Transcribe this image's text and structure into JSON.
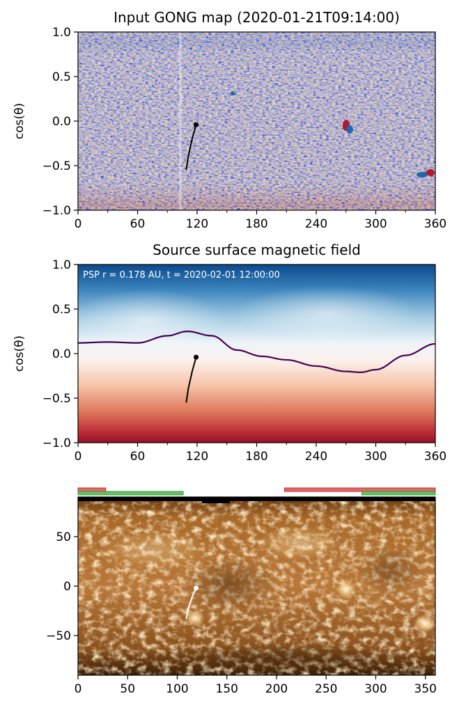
{
  "chart_data": [
    {
      "type": "heatmap",
      "title": "Input GONG map (2020-01-21T09:14:00)",
      "ylabel": "cos(θ)",
      "xlim": [
        0,
        360
      ],
      "ylim": [
        -1,
        1
      ],
      "xticks": [
        "0",
        "60",
        "120",
        "180",
        "240",
        "300",
        "360"
      ],
      "yticks": [
        "−1.0",
        "−0.5",
        "0.0",
        "0.5",
        "1.0"
      ],
      "colormap": "RdBu_r",
      "trajectory": {
        "color": "#000000",
        "x": [
          109,
          110,
          111,
          113,
          115,
          117,
          119
        ],
        "y": [
          -0.55,
          -0.48,
          -0.4,
          -0.3,
          -0.2,
          -0.12,
          -0.04
        ]
      },
      "features": [
        {
          "x": 269,
          "y": -0.05,
          "polarity": "mixed"
        },
        {
          "x": 344,
          "y": -0.6,
          "polarity": "negative"
        },
        {
          "x": 353,
          "y": -0.57,
          "polarity": "positive"
        },
        {
          "x": 155,
          "y": 0.3,
          "polarity": "negative"
        }
      ]
    },
    {
      "type": "heatmap",
      "title": "Source surface magnetic field",
      "ylabel": "cos(θ)",
      "xlim": [
        0,
        360
      ],
      "ylim": [
        -1,
        1
      ],
      "xticks": [
        "0",
        "60",
        "120",
        "180",
        "240",
        "300",
        "360"
      ],
      "yticks": [
        "−1.0",
        "−0.5",
        "0.0",
        "0.5",
        "1.0"
      ],
      "annotation": "PSP r = 0.178 AU, t = 2020-02-01 12:00:00",
      "colormap": "RdBu_r",
      "neutral_line": {
        "color": "#440154",
        "x": [
          0,
          30,
          60,
          90,
          110,
          135,
          160,
          185,
          210,
          240,
          270,
          285,
          300,
          330,
          360
        ],
        "y": [
          0.12,
          0.13,
          0.12,
          0.2,
          0.25,
          0.2,
          0.04,
          -0.03,
          -0.07,
          -0.14,
          -0.2,
          -0.21,
          -0.18,
          -0.02,
          0.11
        ]
      },
      "trajectory": {
        "color": "#000000",
        "x": [
          109,
          110,
          111,
          113,
          115,
          117,
          119
        ],
        "y": [
          -0.55,
          -0.48,
          -0.4,
          -0.3,
          -0.2,
          -0.12,
          -0.04
        ]
      }
    },
    {
      "type": "heatmap",
      "xlim": [
        0,
        360
      ],
      "ylim": [
        -90,
        90
      ],
      "xticks": [
        "0",
        "50",
        "100",
        "150",
        "200",
        "250",
        "300",
        "350"
      ],
      "yticks": [
        "−50",
        "0",
        "50"
      ],
      "colormap": "sdoaia193",
      "trajectory": {
        "color": "#ffffff",
        "x": [
          109,
          110,
          111,
          113,
          115,
          117,
          119
        ],
        "y": [
          -33,
          -28,
          -23,
          -17,
          -11,
          -6,
          -2
        ]
      },
      "polarity_bars": [
        {
          "color": "#d62728",
          "x_start": 0,
          "x_end": 28
        },
        {
          "color": "#2ca02c",
          "x_start": 0,
          "x_end": 106
        },
        {
          "color": "#d62728",
          "x_start": 208,
          "x_end": 360
        },
        {
          "color": "#2ca02c",
          "x_start": 286,
          "x_end": 360
        }
      ]
    }
  ]
}
